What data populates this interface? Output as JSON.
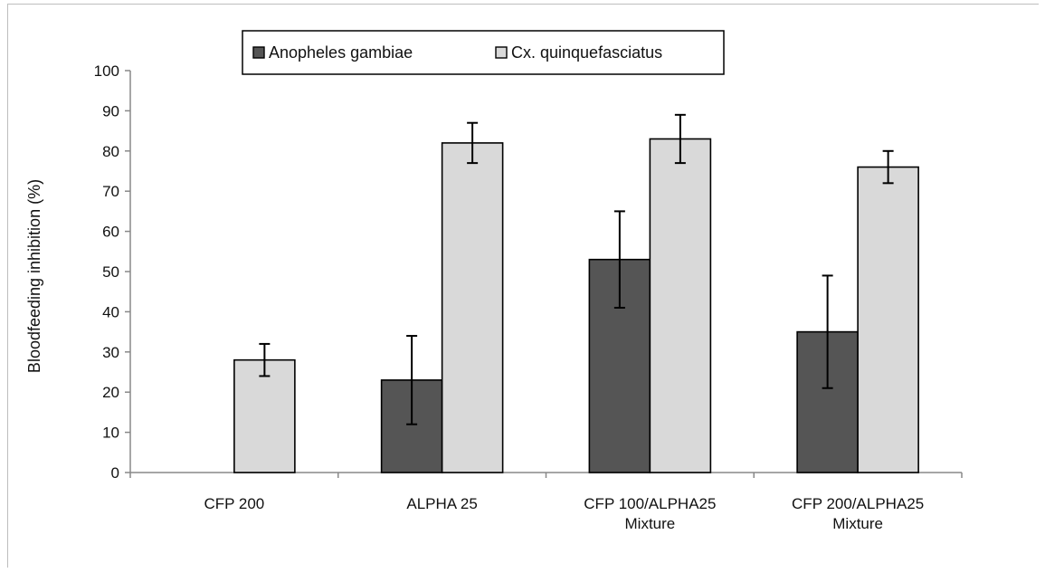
{
  "chart_data": {
    "type": "bar",
    "title": "",
    "xlabel": "",
    "ylabel": "Bloodfeeding inhibition (%)",
    "ylim": [
      0,
      100
    ],
    "yticks": [
      0,
      10,
      20,
      30,
      40,
      50,
      60,
      70,
      80,
      90,
      100
    ],
    "grid": false,
    "legend_position": "top",
    "categories": [
      [
        "CFP 200"
      ],
      [
        "ALPHA 25"
      ],
      [
        "CFP 100/ALPHA25",
        "Mixture"
      ],
      [
        "CFP 200/ALPHA25",
        "Mixture"
      ]
    ],
    "series": [
      {
        "name": "Anopheles gambiae",
        "color": "#555555",
        "values": [
          0,
          23,
          53,
          35
        ],
        "error_low": [
          null,
          12,
          41,
          21
        ],
        "error_high": [
          null,
          34,
          65,
          49
        ]
      },
      {
        "name": "Cx. quinquefasciatus",
        "color": "#d9d9d9",
        "values": [
          28,
          82,
          83,
          76
        ],
        "error_low": [
          24,
          77,
          77,
          72
        ],
        "error_high": [
          32,
          87,
          89,
          80
        ]
      }
    ]
  }
}
